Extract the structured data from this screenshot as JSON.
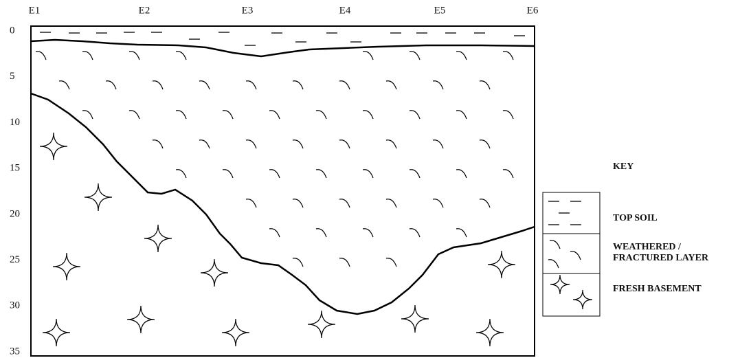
{
  "section": {
    "stations": [
      "E1",
      "E2",
      "E3",
      "E4",
      "E5",
      "E6"
    ],
    "depths": [
      0,
      5,
      10,
      15,
      20,
      25,
      30,
      35
    ]
  },
  "key": {
    "title": "KEY",
    "items": [
      "TOP SOIL",
      "WEATHERED /\nFRACTURED LAYER",
      "FRESH BASEMENT"
    ]
  }
}
